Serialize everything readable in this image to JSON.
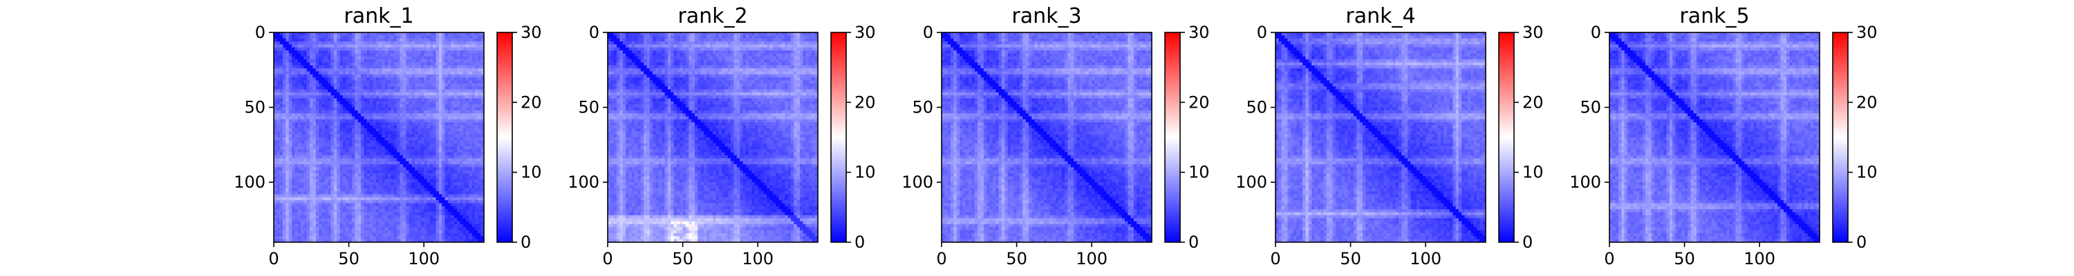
{
  "chart_data": [
    {
      "type": "heatmap",
      "title": "rank_1",
      "xlim": [
        0,
        140
      ],
      "ylim": [
        140,
        0
      ],
      "xticks": [
        "0",
        "50",
        "100"
      ],
      "yticks": [
        "0",
        "50",
        "100"
      ],
      "colorbar": {
        "min": 0,
        "max": 30,
        "ticks": [
          "0",
          "10",
          "20",
          "30"
        ],
        "colormap": "bwr"
      },
      "description": "pairwise predicted distance error, mostly 0–6 (blue), near 0 on the diagonal; lighter bands around rows/cols ~25, ~40, ~55, ~85",
      "bands": [
        8,
        25,
        40,
        55,
        85,
        110
      ]
    },
    {
      "type": "heatmap",
      "title": "rank_2",
      "xlim": [
        0,
        140
      ],
      "ylim": [
        140,
        0
      ],
      "xticks": [
        "0",
        "50",
        "100"
      ],
      "yticks": [
        "0",
        "50",
        "100"
      ],
      "colorbar": {
        "min": 0,
        "max": 30,
        "ticks": [
          "0",
          "10",
          "20",
          "30"
        ],
        "colormap": "bwr"
      },
      "description": "similar pattern, lighter region toward bottom rows (~120–140) with slight red near col ~50",
      "bands": [
        8,
        25,
        40,
        55,
        85,
        125
      ]
    },
    {
      "type": "heatmap",
      "title": "rank_3",
      "xlim": [
        0,
        140
      ],
      "ylim": [
        140,
        0
      ],
      "xticks": [
        "0",
        "50",
        "100"
      ],
      "yticks": [
        "0",
        "50",
        "100"
      ],
      "colorbar": {
        "min": 0,
        "max": 30,
        "ticks": [
          "0",
          "10",
          "20",
          "30"
        ],
        "colormap": "bwr"
      },
      "bands": [
        8,
        25,
        40,
        55,
        85,
        125
      ]
    },
    {
      "type": "heatmap",
      "title": "rank_4",
      "xlim": [
        0,
        140
      ],
      "ylim": [
        140,
        0
      ],
      "xticks": [
        "0",
        "50",
        "100"
      ],
      "yticks": [
        "0",
        "50",
        "100"
      ],
      "colorbar": {
        "min": 0,
        "max": 30,
        "ticks": [
          "0",
          "10",
          "20",
          "30"
        ],
        "colormap": "bwr"
      },
      "bands": [
        5,
        20,
        35,
        55,
        85,
        120
      ]
    },
    {
      "type": "heatmap",
      "title": "rank_5",
      "xlim": [
        0,
        140
      ],
      "ylim": [
        140,
        0
      ],
      "xticks": [
        "0",
        "50",
        "100"
      ],
      "yticks": [
        "0",
        "50",
        "100"
      ],
      "colorbar": {
        "min": 0,
        "max": 30,
        "ticks": [
          "0",
          "10",
          "20",
          "30"
        ],
        "colormap": "bwr"
      },
      "bands": [
        8,
        25,
        40,
        55,
        85,
        115
      ]
    }
  ],
  "colors": {
    "low": "#0000ff",
    "mid": "#ffffff",
    "high": "#ff0000"
  }
}
